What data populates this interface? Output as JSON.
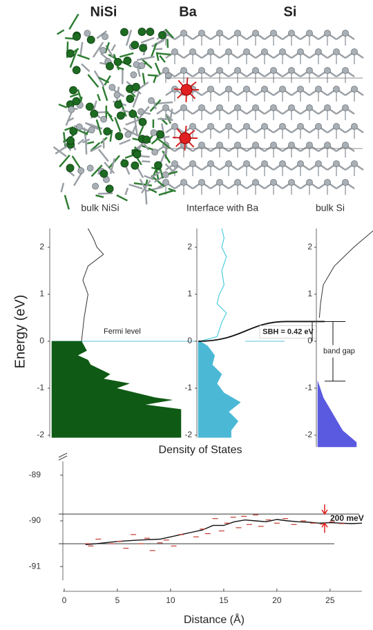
{
  "labels": {
    "materials": [
      "NiSi",
      "Ba",
      "Si"
    ],
    "regions": [
      "bulk NiSi",
      "Interface with Ba",
      "bulk Si"
    ]
  },
  "chart_data": [
    {
      "type": "dos",
      "ylabel": "Energy (eV)",
      "xlabel": "Density of States",
      "ylim": [
        -2.05,
        2.4
      ],
      "yticks": [
        -2,
        -1,
        0,
        1,
        2
      ],
      "xlim": [
        0,
        1
      ],
      "fermi_level": {
        "label": "Fermi level",
        "value": 0
      },
      "series": [
        {
          "color": "#333333",
          "fill": false,
          "energy": [
            0,
            0.5,
            1.0,
            1.3,
            1.6,
            1.85,
            2.0,
            2.2,
            2.4
          ],
          "values": [
            0.23,
            0.25,
            0.28,
            0.24,
            0.28,
            0.4,
            0.35,
            0.32,
            0.28
          ]
        },
        {
          "color": "#0f5a14",
          "fill": true,
          "energy": [
            0,
            -0.2,
            -0.3,
            -0.4,
            -0.5,
            -0.7,
            -0.8,
            -0.9,
            -1.0,
            -1.2,
            -1.25,
            -1.35,
            -1.45,
            -2.05
          ],
          "values": [
            0.23,
            0.27,
            0.2,
            0.28,
            0.3,
            0.45,
            0.4,
            0.6,
            0.5,
            0.8,
            0.93,
            0.72,
            1.0,
            1.0
          ]
        }
      ]
    },
    {
      "type": "dos",
      "ylim": [
        -2.05,
        2.4
      ],
      "yticks": [
        -2,
        -1,
        0,
        1,
        2
      ],
      "xlim": [
        0,
        1
      ],
      "sbh": {
        "label": "SBH = 0.42 eV",
        "value": 0.42
      },
      "series": [
        {
          "color": "#2ec4dc",
          "fill": false,
          "energy": [
            0,
            0.1,
            0.4,
            0.6,
            0.8,
            1.0,
            1.2,
            1.5,
            1.8,
            2.0,
            2.2,
            2.4
          ],
          "values": [
            0.04,
            0.4,
            0.5,
            0.6,
            0.4,
            0.45,
            0.55,
            0.5,
            0.6,
            0.5,
            0.55,
            0.5
          ]
        },
        {
          "color": "#4bb9d6",
          "fill": true,
          "energy": [
            0,
            -0.1,
            -0.3,
            -0.5,
            -0.7,
            -0.9,
            -1.1,
            -1.3,
            -1.5,
            -1.7,
            -1.9,
            -2.05
          ],
          "values": [
            0.04,
            0.2,
            0.35,
            0.3,
            0.5,
            0.4,
            0.55,
            0.9,
            0.65,
            0.85,
            0.7,
            0.7
          ]
        }
      ]
    },
    {
      "type": "dos",
      "ylim": [
        -2.25,
        2.4
      ],
      "yticks": [
        -2,
        -1,
        0,
        1,
        2
      ],
      "xlim": [
        0,
        1
      ],
      "band_gap": {
        "label": "band gap",
        "top": 0.42,
        "bottom": -0.85
      },
      "series": [
        {
          "color": "#333333",
          "fill": false,
          "energy": [
            0.5,
            0.8,
            1.2,
            1.6,
            2.0,
            2.2,
            2.35
          ],
          "values": [
            0.03,
            0.05,
            0.1,
            0.3,
            0.65,
            0.85,
            1.0
          ]
        },
        {
          "color": "#5a5ae0",
          "fill": true,
          "energy": [
            -0.85,
            -1.2,
            -1.6,
            -1.9,
            -2.15,
            -2.25
          ],
          "values": [
            0.0,
            0.1,
            0.3,
            0.45,
            0.7,
            0.7
          ]
        }
      ]
    },
    {
      "type": "line",
      "xlabel": "Distance (Å)",
      "xlim": [
        0,
        28
      ],
      "xticks": [
        0,
        5,
        10,
        15,
        20,
        25
      ],
      "ylim": [
        -91.3,
        -88.7
      ],
      "yticks": [
        -89,
        -90,
        -91
      ],
      "hlines": [
        -89.85,
        -90.5
      ],
      "annotation": {
        "label": "200 meV",
        "top": -89.85,
        "bottom": -90.05,
        "color": "#e02020"
      },
      "series": [
        {
          "color": "#111111",
          "marker": "none",
          "x": [
            2,
            3,
            5,
            7,
            9,
            10,
            11,
            12,
            13,
            14,
            15,
            16,
            17,
            18,
            19,
            20,
            21,
            22,
            23,
            24,
            25,
            26,
            27,
            28
          ],
          "values": [
            -90.52,
            -90.5,
            -90.45,
            -90.42,
            -90.4,
            -90.35,
            -90.3,
            -90.25,
            -90.2,
            -90.1,
            -90.1,
            -90.02,
            -89.98,
            -90.0,
            -90.02,
            -89.97,
            -90.0,
            -90.02,
            -90.03,
            -90.05,
            -90.04,
            -90.05,
            -90.06,
            -90.05
          ]
        },
        {
          "color": "#c0392b",
          "marker": "dash",
          "x": [
            2.2,
            2.5,
            3.2,
            4.5,
            5.2,
            5.8,
            6.5,
            7.2,
            7.8,
            8.3,
            9.0,
            9.6,
            10.3,
            11.0,
            12.4,
            13.0,
            13.5,
            14.2,
            14.8,
            15.3,
            15.9,
            16.4,
            16.9,
            17.4,
            18.0,
            18.5,
            19.2,
            20.0,
            20.8,
            21.6,
            22.5,
            23.4,
            24.3,
            25.2,
            26.1
          ],
          "values": [
            -90.5,
            -90.55,
            -90.4,
            -90.5,
            -90.45,
            -90.6,
            -90.3,
            -90.5,
            -90.38,
            -90.65,
            -90.48,
            -90.42,
            -90.55,
            -90.3,
            -90.35,
            -90.18,
            -90.28,
            -89.95,
            -90.22,
            -90.05,
            -89.92,
            -90.15,
            -89.9,
            -90.08,
            -89.87,
            -90.12,
            -89.98,
            -90.05,
            -89.95,
            -90.08,
            -90.0,
            -90.05,
            -90.07,
            -90.02,
            -90.06
          ]
        }
      ]
    }
  ]
}
